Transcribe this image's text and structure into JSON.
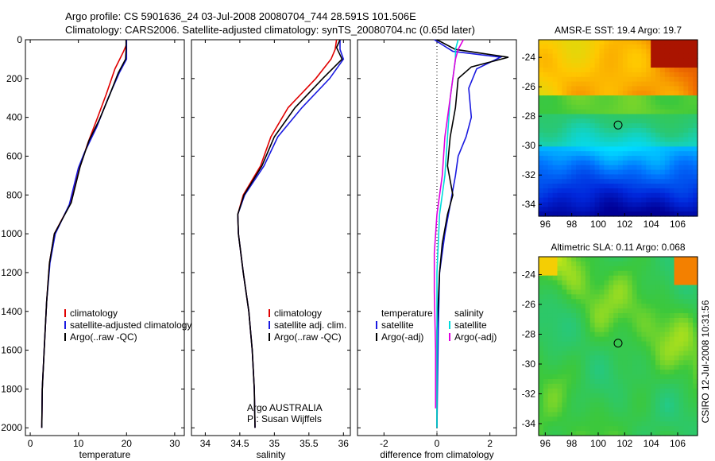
{
  "header": {
    "line1": "Argo profile: CS 5901636_24 03-Jul-2008 20080704_744 28.591S 101.506E",
    "line2": "Climatology: CARS2006. Satellite-adjusted climatology: synTS_20080704.nc (0.65d later)"
  },
  "side_stamp": "CSIRO 12-Jul-2008 10:31:56",
  "colors": {
    "climatology": "#e00000",
    "satellite": "#1a1ae0",
    "argo": "#000000",
    "sat_salinity": "#00dcdc",
    "argo_salinity": "#e000e0"
  },
  "chart_data": [
    {
      "type": "line",
      "xlabel": "temperature",
      "ylabel": "",
      "xlim": [
        -1,
        32
      ],
      "ylim": [
        2040,
        0
      ],
      "xticks": [
        0,
        10,
        20,
        30
      ],
      "yticks": [
        0,
        200,
        400,
        600,
        800,
        1000,
        1200,
        1400,
        1600,
        1800,
        2000
      ],
      "legend": {
        "position": "lower-right",
        "entries": [
          "climatology",
          "satellite-adjusted climatology",
          "Argo(..raw -QC)"
        ]
      },
      "series": [
        {
          "name": "climatology",
          "color": "#e00000",
          "points": [
            [
              20.0,
              0
            ],
            [
              19.9,
              30
            ],
            [
              19.4,
              60
            ],
            [
              17.6,
              150
            ],
            [
              15.8,
              280
            ],
            [
              14.0,
              400
            ],
            [
              12.0,
              530
            ],
            [
              10.0,
              680
            ],
            [
              8.2,
              850
            ],
            [
              5.0,
              1000
            ],
            [
              4.0,
              1150
            ],
            [
              3.4,
              1350
            ],
            [
              2.9,
              1600
            ],
            [
              2.5,
              1800
            ],
            [
              2.4,
              2000
            ]
          ]
        },
        {
          "name": "satellite-adjusted climatology",
          "color": "#1a1ae0",
          "points": [
            [
              20.0,
              0
            ],
            [
              20.0,
              50
            ],
            [
              20.0,
              100
            ],
            [
              18.5,
              170
            ],
            [
              16.2,
              300
            ],
            [
              13.8,
              450
            ],
            [
              11.3,
              580
            ],
            [
              10.0,
              660
            ],
            [
              8.1,
              850
            ],
            [
              5.2,
              1000
            ],
            [
              4.1,
              1150
            ],
            [
              3.4,
              1350
            ],
            [
              2.9,
              1600
            ],
            [
              2.5,
              1800
            ],
            [
              2.4,
              2000
            ]
          ]
        },
        {
          "name": "Argo(..raw -QC)",
          "color": "#000000",
          "points": [
            [
              19.9,
              0
            ],
            [
              19.9,
              50
            ],
            [
              19.8,
              100
            ],
            [
              18.3,
              170
            ],
            [
              16.4,
              290
            ],
            [
              14.4,
              410
            ],
            [
              12.2,
              520
            ],
            [
              10.4,
              650
            ],
            [
              8.5,
              840
            ],
            [
              5.0,
              1000
            ],
            [
              4.0,
              1150
            ],
            [
              3.4,
              1350
            ],
            [
              2.9,
              1600
            ],
            [
              2.5,
              1800
            ],
            [
              2.4,
              2000
            ]
          ]
        }
      ]
    },
    {
      "type": "line",
      "xlabel": "salinity",
      "ylabel": "",
      "xlim": [
        33.8,
        36.1
      ],
      "ylim": [
        2040,
        0
      ],
      "xticks": [
        34,
        34.5,
        35,
        35.5,
        36
      ],
      "yticks": [
        0,
        200,
        400,
        600,
        800,
        1000,
        1200,
        1400,
        1600,
        1800,
        2000
      ],
      "legend": {
        "position": "lower-right",
        "entries": [
          "climatology",
          "satellite adj. clim.",
          "Argo(..raw -QC)"
        ]
      },
      "annotation": [
        "Argo AUSTRALIA",
        "PI: Susan Wijffels"
      ],
      "series": [
        {
          "name": "climatology",
          "color": "#e00000",
          "points": [
            [
              35.9,
              0
            ],
            [
              35.88,
              50
            ],
            [
              35.82,
              100
            ],
            [
              35.6,
              200
            ],
            [
              35.2,
              350
            ],
            [
              34.95,
              500
            ],
            [
              34.8,
              650
            ],
            [
              34.55,
              800
            ],
            [
              34.47,
              900
            ],
            [
              34.48,
              1000
            ],
            [
              34.55,
              1200
            ],
            [
              34.63,
              1400
            ],
            [
              34.68,
              1600
            ],
            [
              34.71,
              1800
            ],
            [
              34.72,
              2000
            ]
          ]
        },
        {
          "name": "satellite adj. clim.",
          "color": "#1a1ae0",
          "points": [
            [
              35.95,
              0
            ],
            [
              35.95,
              50
            ],
            [
              36.0,
              100
            ],
            [
              35.8,
              200
            ],
            [
              35.4,
              350
            ],
            [
              35.05,
              500
            ],
            [
              34.85,
              650
            ],
            [
              34.57,
              800
            ],
            [
              34.47,
              900
            ],
            [
              34.48,
              1000
            ],
            [
              34.55,
              1200
            ],
            [
              34.63,
              1400
            ],
            [
              34.68,
              1600
            ],
            [
              34.71,
              1800
            ],
            [
              34.72,
              2000
            ]
          ]
        },
        {
          "name": "Argo(..raw -QC)",
          "color": "#000000",
          "points": [
            [
              35.95,
              0
            ],
            [
              35.9,
              40
            ],
            [
              35.98,
              100
            ],
            [
              35.7,
              200
            ],
            [
              35.3,
              350
            ],
            [
              35.0,
              500
            ],
            [
              34.82,
              650
            ],
            [
              34.56,
              800
            ],
            [
              34.47,
              900
            ],
            [
              34.48,
              1000
            ],
            [
              34.55,
              1200
            ],
            [
              34.63,
              1400
            ],
            [
              34.68,
              1600
            ],
            [
              34.71,
              1800
            ],
            [
              34.72,
              2000
            ]
          ]
        }
      ]
    },
    {
      "type": "line",
      "xlabel": "difference from climatology",
      "ylabel": "",
      "xlim": [
        -3,
        3
      ],
      "ylim": [
        2040,
        0
      ],
      "xticks": [
        -2,
        0,
        2
      ],
      "yticks": [
        0,
        200,
        400,
        600,
        800,
        1000,
        1200,
        1400,
        1600,
        1800,
        2000
      ],
      "zero_line": true,
      "legend": {
        "position": "lower-center",
        "headers": [
          "temperature",
          "salinity"
        ],
        "entries_left": [
          "satellite",
          "Argo(-adj)"
        ],
        "entries_right": [
          "satellite",
          "Argo(-adj)"
        ]
      },
      "series": [
        {
          "name": "satellite",
          "group": "temperature",
          "color": "#1a1ae0",
          "points": [
            [
              -0.1,
              0
            ],
            [
              0.6,
              60
            ],
            [
              2.4,
              90
            ],
            [
              1.5,
              150
            ],
            [
              1.2,
              250
            ],
            [
              1.3,
              400
            ],
            [
              1.1,
              500
            ],
            [
              0.8,
              600
            ],
            [
              0.7,
              700
            ],
            [
              0.5,
              850
            ],
            [
              0.3,
              1000
            ],
            [
              0.1,
              1200
            ],
            [
              0.05,
              1500
            ],
            [
              0.0,
              2000
            ]
          ]
        },
        {
          "name": "Argo(-adj)",
          "group": "temperature",
          "color": "#000000",
          "points": [
            [
              0.0,
              0
            ],
            [
              0.7,
              50
            ],
            [
              2.7,
              90
            ],
            [
              1.3,
              140
            ],
            [
              0.8,
              200
            ],
            [
              0.7,
              350
            ],
            [
              0.5,
              500
            ],
            [
              0.4,
              650
            ],
            [
              0.6,
              800
            ],
            [
              0.4,
              900
            ],
            [
              0.2,
              1050
            ],
            [
              0.1,
              1200
            ],
            [
              0.0,
              1500
            ],
            [
              0.0,
              2000
            ]
          ]
        },
        {
          "name": "satellite",
          "group": "salinity",
          "color": "#00dcdc",
          "points": [
            [
              0.8,
              0
            ],
            [
              0.7,
              50
            ],
            [
              0.7,
              100
            ],
            [
              0.6,
              200
            ],
            [
              0.5,
              300
            ],
            [
              0.4,
              500
            ],
            [
              0.3,
              700
            ],
            [
              0.1,
              900
            ],
            [
              0.0,
              1200
            ],
            [
              0.0,
              1500
            ],
            [
              0.0,
              2000
            ]
          ]
        },
        {
          "name": "Argo(-adj)",
          "group": "salinity",
          "color": "#e000e0",
          "points": [
            [
              1.0,
              0
            ],
            [
              0.8,
              50
            ],
            [
              0.7,
              100
            ],
            [
              0.6,
              200
            ],
            [
              0.5,
              300
            ],
            [
              0.3,
              500
            ],
            [
              0.2,
              700
            ],
            [
              0.0,
              900
            ],
            [
              -0.1,
              1100
            ],
            [
              -0.1,
              1300
            ],
            [
              -0.05,
              1600
            ],
            [
              -0.05,
              1900
            ]
          ]
        }
      ]
    },
    {
      "type": "heatmap",
      "title": "AMSR-E SST: 19.4 Argo: 19.7",
      "xlim": [
        95.5,
        107.5
      ],
      "ylim": [
        -34.8,
        -22.8
      ],
      "xticks": [
        96,
        98,
        100,
        102,
        104,
        106
      ],
      "yticks": [
        -24,
        -26,
        -28,
        -30,
        -32,
        -34
      ],
      "marker": [
        101.5,
        -28.6
      ]
    },
    {
      "type": "heatmap",
      "title": "Altimetric SLA: 0.11 Argo: 0.068",
      "xlim": [
        95.5,
        107.5
      ],
      "ylim": [
        -34.8,
        -22.8
      ],
      "xticks": [
        96,
        98,
        100,
        102,
        104,
        106
      ],
      "yticks": [
        -24,
        -26,
        -28,
        -30,
        -32,
        -34
      ],
      "marker": [
        101.5,
        -28.6
      ]
    }
  ]
}
